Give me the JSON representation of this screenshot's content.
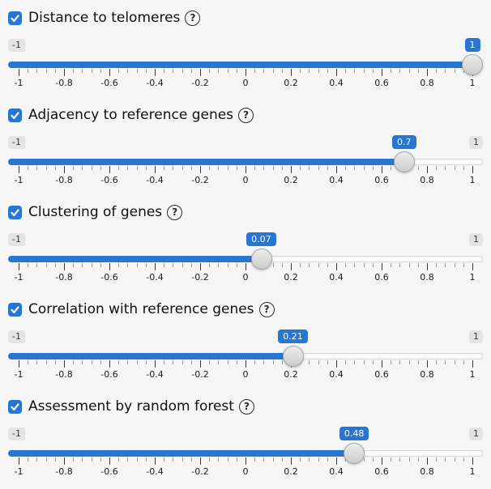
{
  "colors": {
    "accent": "#2777d2",
    "page_background": "#f6f6f6"
  },
  "icons": {
    "help_glyph": "?",
    "check_icon": "checkmark"
  },
  "slider_scale": {
    "min": -1,
    "max": 1,
    "tick_labels": [
      "-1",
      "-0.8",
      "-0.6",
      "-0.4",
      "-0.2",
      "0",
      "0.2",
      "0.4",
      "0.6",
      "0.8",
      "1"
    ]
  },
  "sections": [
    {
      "label": "Distance to telomeres",
      "checked": true,
      "value": 1,
      "value_label": "1",
      "min_label": "-1",
      "max_label": "1",
      "max_label_visible": false
    },
    {
      "label": "Adjacency to reference genes",
      "checked": true,
      "value": 0.7,
      "value_label": "0.7",
      "min_label": "-1",
      "max_label": "1",
      "max_label_visible": true
    },
    {
      "label": "Clustering of genes",
      "checked": true,
      "value": 0.07,
      "value_label": "0.07",
      "min_label": "-1",
      "max_label": "1",
      "max_label_visible": true
    },
    {
      "label": "Correlation with reference genes",
      "checked": true,
      "value": 0.21,
      "value_label": "0.21",
      "min_label": "-1",
      "max_label": "1",
      "max_label_visible": true
    },
    {
      "label": "Assessment by random forest",
      "checked": true,
      "value": 0.48,
      "value_label": "0.48",
      "min_label": "-1",
      "max_label": "1",
      "max_label_visible": true
    }
  ]
}
